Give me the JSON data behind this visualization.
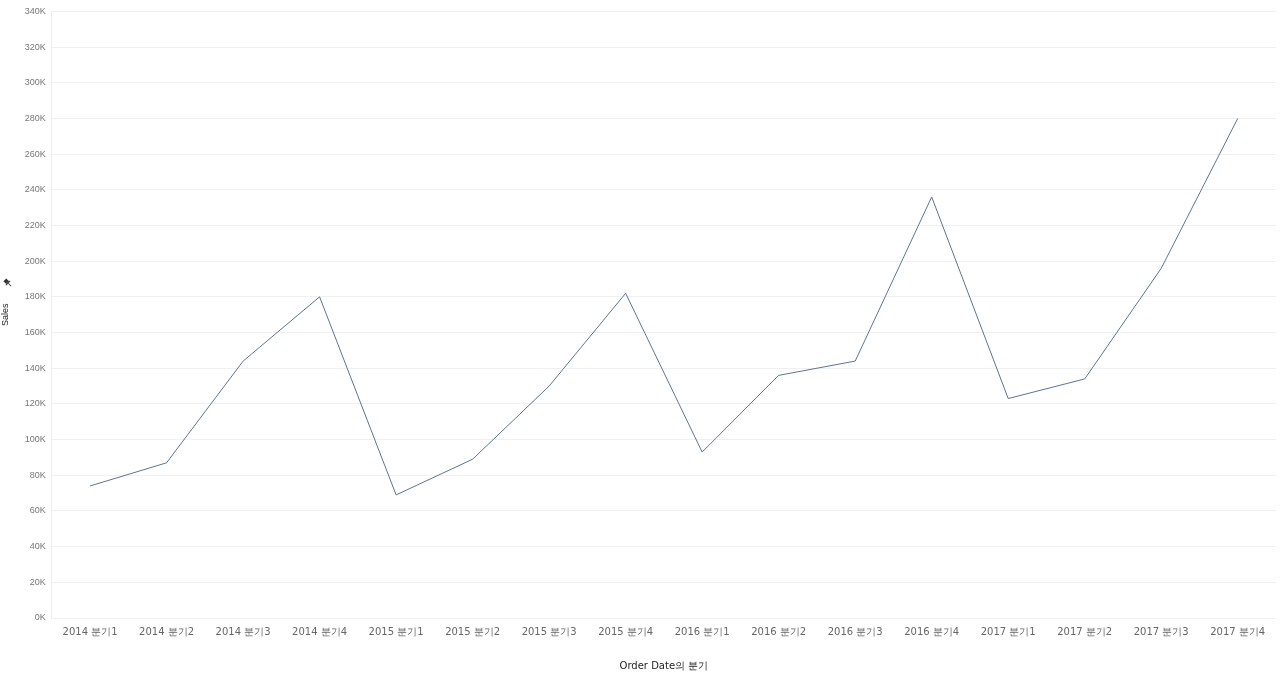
{
  "chart_data": {
    "type": "line",
    "xlabel": "Order Date의 분기",
    "ylabel": "Sales",
    "categories": [
      "2014 분기1",
      "2014 분기2",
      "2014 분기3",
      "2014 분기4",
      "2015 분기1",
      "2015 분기2",
      "2015 분기3",
      "2015 분기4",
      "2016 분기1",
      "2016 분기2",
      "2016 분기3",
      "2016 분기4",
      "2017 분기1",
      "2017 분기2",
      "2017 분기3",
      "2017 분기4"
    ],
    "series": [
      {
        "color": "#5b7594",
        "values": [
          74000,
          87000,
          144000,
          180000,
          69000,
          89000,
          130000,
          182000,
          93000,
          136000,
          144000,
          236000,
          123000,
          134000,
          196000,
          280000
        ]
      }
    ],
    "ylim": [
      0,
      340000
    ],
    "yticks": [
      {
        "value": 0,
        "label": "0K"
      },
      {
        "value": 20000,
        "label": "20K"
      },
      {
        "value": 40000,
        "label": "40K"
      },
      {
        "value": 60000,
        "label": "60K"
      },
      {
        "value": 80000,
        "label": "80K"
      },
      {
        "value": 100000,
        "label": "100K"
      },
      {
        "value": 120000,
        "label": "120K"
      },
      {
        "value": 140000,
        "label": "140K"
      },
      {
        "value": 160000,
        "label": "160K"
      },
      {
        "value": 180000,
        "label": "180K"
      },
      {
        "value": 200000,
        "label": "200K"
      },
      {
        "value": 220000,
        "label": "220K"
      },
      {
        "value": 240000,
        "label": "240K"
      },
      {
        "value": 260000,
        "label": "260K"
      },
      {
        "value": 280000,
        "label": "280K"
      },
      {
        "value": 300000,
        "label": "300K"
      },
      {
        "value": 320000,
        "label": "320K"
      },
      {
        "value": 340000,
        "label": "340K"
      }
    ],
    "grid": "y",
    "legend": false,
    "marker": "none",
    "line_style": "solid"
  }
}
